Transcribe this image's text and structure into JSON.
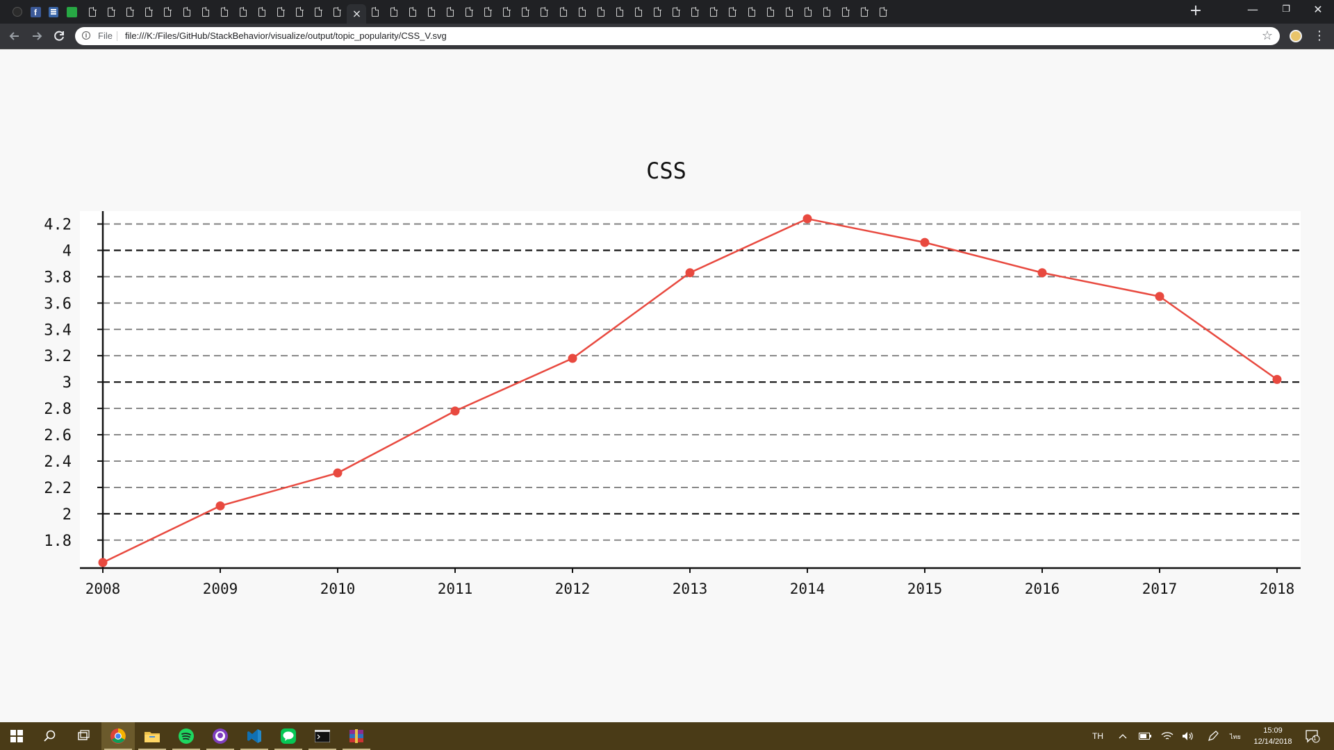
{
  "browser": {
    "tab_count_docs": 43,
    "new_tab_label": "+",
    "window_controls": {
      "minimize": "—",
      "maximize": "❐",
      "close": "✕"
    },
    "toolbar": {
      "url_prefix": "File",
      "url": "file:///K:/Files/GitHub/StackBehavior/visualize/output/topic_popularity/CSS_V.svg"
    }
  },
  "chart_data": {
    "type": "line",
    "title": "CSS",
    "xlabel": "",
    "ylabel": "",
    "categories": [
      "2008",
      "2009",
      "2010",
      "2011",
      "2012",
      "2013",
      "2014",
      "2015",
      "2016",
      "2017",
      "2018"
    ],
    "series": [
      {
        "values": [
          1.63,
          2.06,
          2.31,
          2.78,
          3.18,
          3.83,
          4.24,
          4.06,
          3.83,
          3.65,
          3.02
        ],
        "color": "#e8493f"
      }
    ],
    "y_ticks": [
      1.8,
      2,
      2.2,
      2.4,
      2.6,
      2.8,
      3,
      3.2,
      3.4,
      3.6,
      3.8,
      4,
      4.2
    ],
    "y_tick_labels": [
      "1.8",
      "2",
      "2.2",
      "2.4",
      "2.6",
      "2.8",
      "3",
      "3.2",
      "3.4",
      "3.6",
      "3.8",
      "4",
      "4.2"
    ],
    "major_y_ticks": [
      2,
      3,
      4
    ],
    "ylim": [
      1.6,
      4.3
    ],
    "grid": true,
    "grid_style": "dashed"
  },
  "taskbar": {
    "apps": [
      "start-icon",
      "search-icon",
      "task-view-icon",
      "chrome-icon",
      "file-explorer-icon",
      "spotify-icon",
      "github-desktop-icon",
      "vscode-icon",
      "line-icon",
      "terminal-icon",
      "winrar-icon"
    ],
    "language": "TH",
    "time": "15:09",
    "date": "12/14/2018",
    "notification_count": "1"
  }
}
